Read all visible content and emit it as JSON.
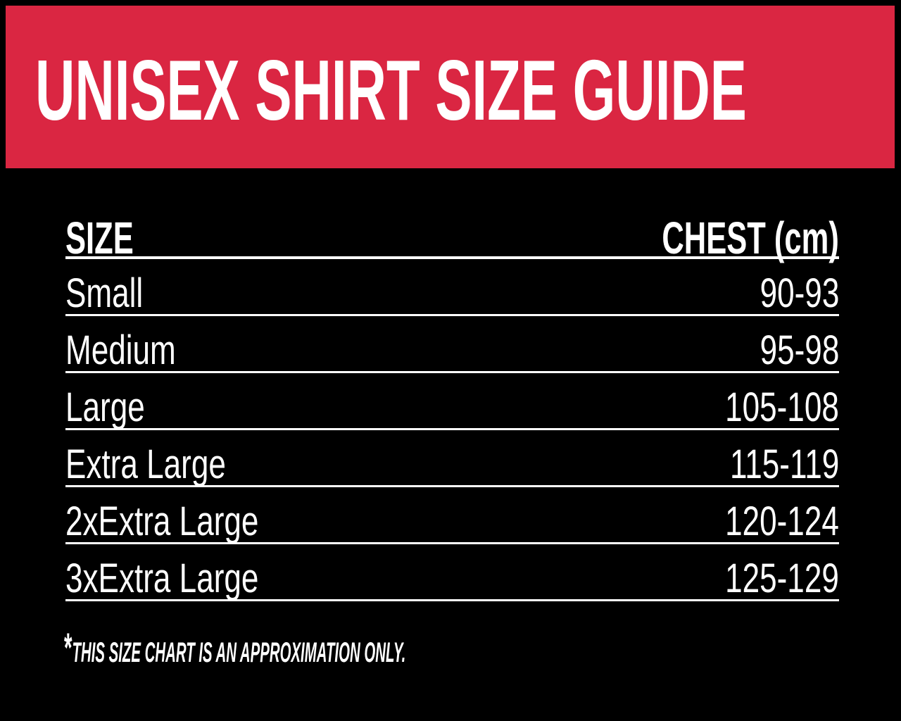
{
  "colors": {
    "background": "#000000",
    "banner": "#DA2642",
    "text": "#FFFFFF",
    "divider": "#FFFFFF"
  },
  "banner": {
    "title": "UNISEX SHIRT SIZE GUIDE"
  },
  "table": {
    "columns": {
      "size": "SIZE",
      "chest": "CHEST (cm)"
    },
    "rows": [
      {
        "size": "Small",
        "chest": "90-93"
      },
      {
        "size": "Medium",
        "chest": "95-98"
      },
      {
        "size": "Large",
        "chest": "105-108"
      },
      {
        "size": "Extra Large",
        "chest": "115-119"
      },
      {
        "size": "2xExtra Large",
        "chest": "120-124"
      },
      {
        "size": "3xExtra Large",
        "chest": "125-129"
      }
    ]
  },
  "footnote": {
    "marker": "*",
    "text": "THIS SIZE CHART IS AN APPROXIMATION ONLY."
  }
}
